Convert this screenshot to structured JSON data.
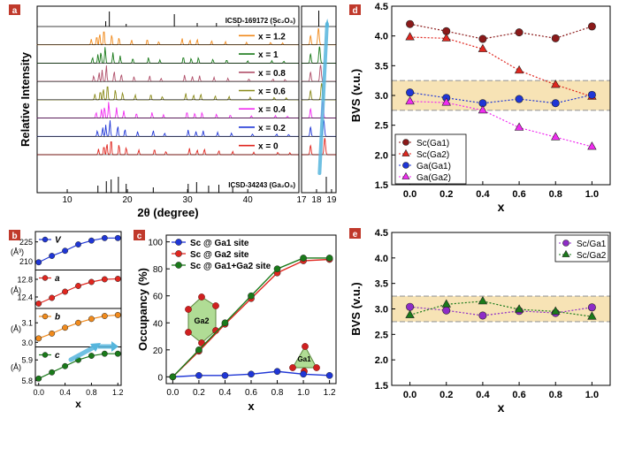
{
  "panel_letters": {
    "a": "a",
    "b": "b",
    "c": "c",
    "d": "d",
    "e": "e"
  },
  "colors": {
    "panel_tag": "#c0392b",
    "band": "#f7e3b5",
    "band_edge": "#9a9a9a",
    "red": "#e0261f",
    "darkred": "#8b1a1a",
    "blue": "#1f36d6",
    "magenta": "#f02cf0",
    "purple": "#8e2cc7",
    "green": "#1a7a1a",
    "orange": "#f08a1c",
    "olive": "#8a8a1a",
    "rose": "#b0506a",
    "arrow": "#56b6dd"
  },
  "chart_data": [
    {
      "id": "a",
      "type": "line",
      "xlabel": "2θ (degree)",
      "ylabel": "Relative Intensity",
      "xticks_main": [
        "10",
        "20",
        "30",
        "40"
      ],
      "xticks_zoom": [
        "17",
        "18",
        "19"
      ],
      "references": [
        {
          "label": "ICSD-169172 (Sc₂O₃)",
          "position": "top"
        },
        {
          "label": "ICSD-34243 (Ga₂O₃)",
          "position": "bottom"
        }
      ],
      "series": [
        {
          "name": "x = 1.2",
          "color": "#f08a1c"
        },
        {
          "name": "x = 1",
          "color": "#1a7a1a"
        },
        {
          "name": "x = 0.8",
          "color": "#b0506a"
        },
        {
          "name": "x = 0.6",
          "color": "#8a8a1a"
        },
        {
          "name": "x = 0.4",
          "color": "#f02cf0"
        },
        {
          "name": "x = 0.2",
          "color": "#1f36d6"
        },
        {
          "name": "x = 0",
          "color": "#e0261f"
        }
      ]
    },
    {
      "id": "b",
      "type": "line",
      "xlabel": "x",
      "x": [
        0,
        0.2,
        0.4,
        0.6,
        0.8,
        1.0,
        1.2
      ],
      "xticks": [
        "0.0",
        "0.4",
        "0.8",
        "1.2"
      ],
      "subplots": [
        {
          "name": "V",
          "unit": "(Å³)",
          "color": "#1f36d6",
          "yticks": [
            "225",
            "210"
          ],
          "ylim": [
            205,
            231
          ],
          "values": [
            209,
            214,
            218,
            223,
            226,
            228,
            228
          ]
        },
        {
          "name": "a",
          "unit": "(Å)",
          "color": "#e0261f",
          "yticks": [
            "12.8",
            "12.4"
          ],
          "ylim": [
            12.2,
            12.95
          ],
          "values": [
            12.25,
            12.38,
            12.52,
            12.65,
            12.74,
            12.8,
            12.81
          ]
        },
        {
          "name": "b",
          "unit": "(Å)",
          "color": "#f08a1c",
          "yticks": [
            "3.1",
            "3.0"
          ],
          "ylim": [
            2.99,
            3.16
          ],
          "values": [
            3.02,
            3.045,
            3.075,
            3.1,
            3.12,
            3.135,
            3.14
          ]
        },
        {
          "name": "c",
          "unit": "(Å)",
          "color": "#1a7a1a",
          "yticks": [
            "5.9",
            "5.8"
          ],
          "ylim": [
            5.79,
            5.95
          ],
          "values": [
            5.81,
            5.84,
            5.87,
            5.9,
            5.92,
            5.93,
            5.93
          ]
        }
      ]
    },
    {
      "id": "c",
      "type": "line",
      "xlabel": "x",
      "ylabel": "Occupancy (%)",
      "xlim": [
        -0.05,
        1.25
      ],
      "ylim": [
        -5,
        105
      ],
      "xticks": [
        "0.0",
        "0.2",
        "0.4",
        "0.6",
        "0.8",
        "1.0",
        "1.2"
      ],
      "yticks": [
        "0",
        "20",
        "40",
        "60",
        "80",
        "100"
      ],
      "x": [
        0,
        0.2,
        0.4,
        0.6,
        0.8,
        1.0,
        1.2
      ],
      "labels": {
        "ga2": "Ga2",
        "ga1": "Ga1"
      },
      "series": [
        {
          "name": "Sc @ Ga1 site",
          "color": "#1f36d6",
          "values": [
            0,
            1,
            1,
            2,
            4,
            2,
            1
          ]
        },
        {
          "name": "Sc @ Ga2 site",
          "color": "#e0261f",
          "values": [
            0,
            19,
            39,
            58,
            77,
            86,
            87
          ]
        },
        {
          "name": "Sc @ Ga1+Ga2 site",
          "color": "#1a7a1a",
          "values": [
            0,
            20,
            40,
            60,
            80,
            88,
            88
          ]
        }
      ]
    },
    {
      "id": "d",
      "type": "line",
      "xlabel": "x",
      "ylabel": "BVS (v.u.)",
      "xlim": [
        -0.1,
        1.1
      ],
      "ylim": [
        1.5,
        4.5
      ],
      "band": [
        2.75,
        3.25
      ],
      "xticks": [
        "0.0",
        "0.2",
        "0.4",
        "0.6",
        "0.8",
        "1.0"
      ],
      "yticks": [
        "1.5",
        "2.0",
        "2.5",
        "3.0",
        "3.5",
        "4.0",
        "4.5"
      ],
      "x": [
        0,
        0.2,
        0.4,
        0.6,
        0.8,
        1.0
      ],
      "series": [
        {
          "name": "Sc(Ga1)",
          "color": "#8b1a1a",
          "marker": "circle",
          "values": [
            4.2,
            4.08,
            3.95,
            4.06,
            3.96,
            4.16
          ]
        },
        {
          "name": "Sc(Ga2)",
          "color": "#e0261f",
          "marker": "triangle",
          "values": [
            3.98,
            3.96,
            3.78,
            3.42,
            3.18,
            2.98
          ]
        },
        {
          "name": "Ga(Ga1)",
          "color": "#1f36d6",
          "marker": "circle",
          "values": [
            3.05,
            2.96,
            2.87,
            2.94,
            2.87,
            3.01
          ]
        },
        {
          "name": "Ga(Ga2)",
          "color": "#f02cf0",
          "marker": "triangle",
          "values": [
            2.9,
            2.88,
            2.75,
            2.46,
            2.3,
            2.14
          ]
        }
      ]
    },
    {
      "id": "e",
      "type": "line",
      "xlabel": "x",
      "ylabel": "BVS (v.u.)",
      "xlim": [
        -0.1,
        1.1
      ],
      "ylim": [
        1.5,
        4.5
      ],
      "band": [
        2.75,
        3.25
      ],
      "xticks": [
        "0.0",
        "0.2",
        "0.4",
        "0.6",
        "0.8",
        "1.0"
      ],
      "yticks": [
        "1.5",
        "2.0",
        "2.5",
        "3.0",
        "3.5",
        "4.0",
        "4.5"
      ],
      "x": [
        0,
        0.2,
        0.4,
        0.6,
        0.8,
        1.0
      ],
      "series": [
        {
          "name": "Sc/Ga1",
          "color": "#8e2cc7",
          "marker": "circle",
          "values": [
            3.04,
            2.97,
            2.87,
            2.96,
            2.92,
            3.03
          ]
        },
        {
          "name": "Sc/Ga2",
          "color": "#1a7a1a",
          "marker": "triangle",
          "values": [
            2.88,
            3.09,
            3.15,
            2.99,
            2.95,
            2.85
          ]
        }
      ]
    }
  ]
}
